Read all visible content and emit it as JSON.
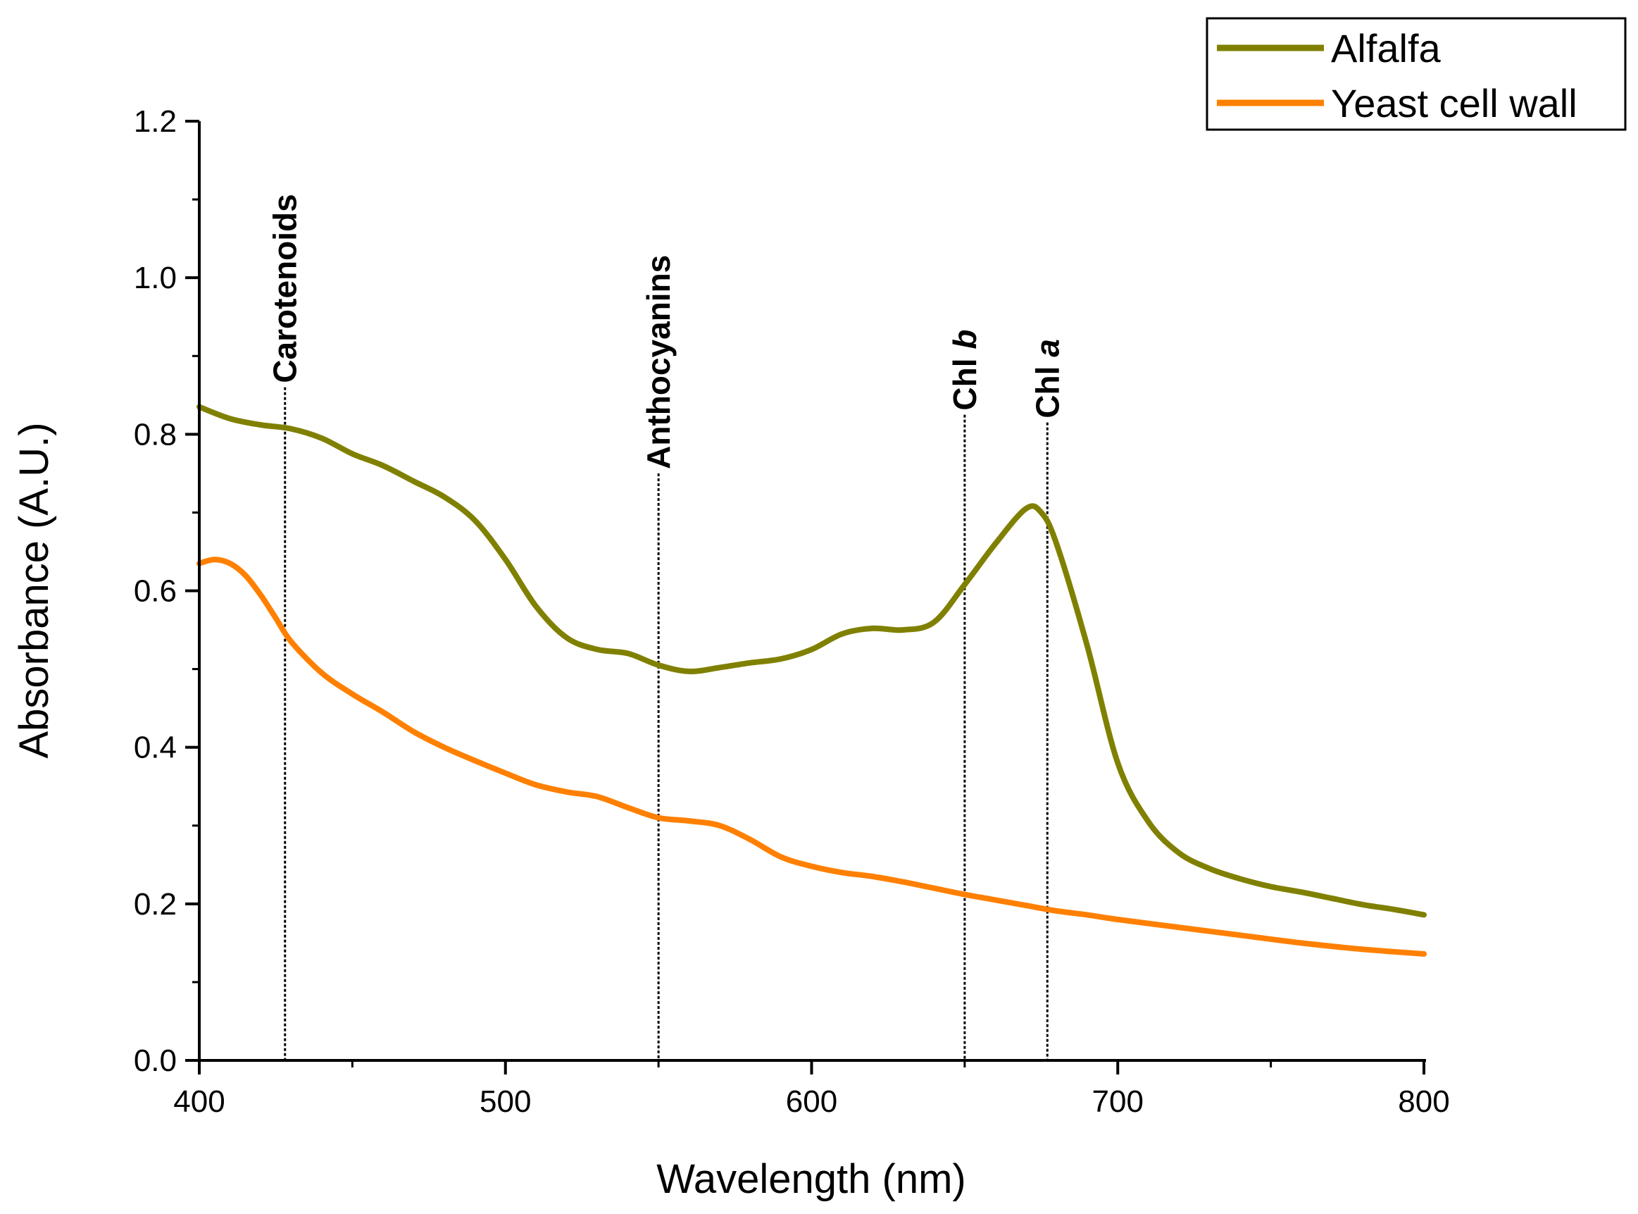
{
  "chart_data": {
    "type": "line",
    "title": "",
    "xlabel": "Wavelength (nm)",
    "ylabel": "Absorbance (A.U.)",
    "xlim": [
      400,
      800
    ],
    "ylim": [
      0.0,
      1.2
    ],
    "xticks": [
      400,
      500,
      600,
      700,
      800
    ],
    "xtick_labels": [
      "400",
      "500",
      "600",
      "700",
      "800"
    ],
    "yticks": [
      0.0,
      0.2,
      0.4,
      0.6,
      0.8,
      1.0,
      1.2
    ],
    "ytick_labels": [
      "0.0",
      "0.2",
      "0.4",
      "0.6",
      "0.8",
      "1.0",
      "1.2"
    ],
    "grid": false,
    "legend_position": "top-right",
    "series": [
      {
        "name": "Alfalfa",
        "color": "#808000",
        "x": [
          400,
          410,
          420,
          430,
          440,
          450,
          460,
          470,
          480,
          490,
          500,
          510,
          520,
          530,
          540,
          550,
          560,
          570,
          580,
          590,
          600,
          610,
          620,
          630,
          640,
          650,
          660,
          670,
          675,
          680,
          690,
          700,
          710,
          720,
          730,
          740,
          750,
          760,
          770,
          780,
          790,
          800
        ],
        "y": [
          0.835,
          0.82,
          0.812,
          0.807,
          0.795,
          0.775,
          0.76,
          0.74,
          0.72,
          0.69,
          0.64,
          0.58,
          0.54,
          0.525,
          0.52,
          0.505,
          0.497,
          0.502,
          0.508,
          0.513,
          0.525,
          0.545,
          0.552,
          0.55,
          0.56,
          0.608,
          0.66,
          0.705,
          0.7,
          0.66,
          0.53,
          0.38,
          0.305,
          0.265,
          0.245,
          0.232,
          0.222,
          0.215,
          0.207,
          0.199,
          0.193,
          0.186
        ]
      },
      {
        "name": "Yeast cell wall",
        "color": "#FF8000",
        "x": [
          400,
          405,
          410,
          415,
          420,
          425,
          430,
          440,
          450,
          460,
          470,
          480,
          490,
          500,
          510,
          520,
          530,
          540,
          550,
          560,
          570,
          580,
          590,
          600,
          610,
          620,
          630,
          640,
          650,
          660,
          670,
          680,
          690,
          700,
          720,
          740,
          760,
          780,
          800
        ],
        "y": [
          0.635,
          0.64,
          0.635,
          0.62,
          0.595,
          0.565,
          0.535,
          0.495,
          0.468,
          0.445,
          0.42,
          0.4,
          0.383,
          0.367,
          0.352,
          0.343,
          0.337,
          0.323,
          0.31,
          0.306,
          0.3,
          0.282,
          0.26,
          0.248,
          0.24,
          0.235,
          0.228,
          0.22,
          0.212,
          0.205,
          0.198,
          0.191,
          0.186,
          0.18,
          0.17,
          0.16,
          0.15,
          0.142,
          0.136
        ]
      }
    ],
    "annotations": [
      {
        "label": "Carotenoids",
        "label_suffix": "",
        "x": 428,
        "y_top": 0.86
      },
      {
        "label": "Anthocyanins",
        "label_suffix": "",
        "x": 550,
        "y_top": 0.75
      },
      {
        "label": "Chl ",
        "label_suffix": "b",
        "x": 650,
        "y_top": 0.825
      },
      {
        "label": "Chl ",
        "label_suffix": "a",
        "x": 677,
        "y_top": 0.815
      }
    ]
  }
}
